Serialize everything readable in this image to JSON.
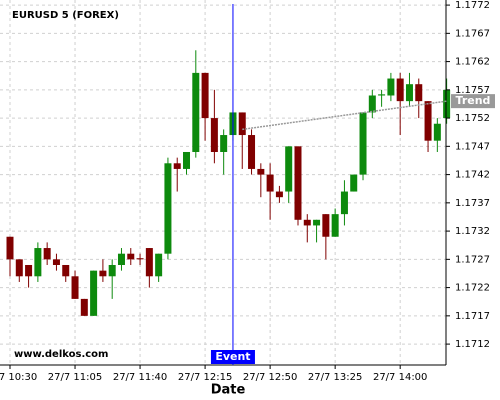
{
  "chart_data": {
    "type": "candlestick",
    "title": "EURUSD 5 (FOREX)",
    "watermark": "www.delkos.com",
    "xlabel": "Date",
    "categories": [
      "27/7 10:30",
      null,
      null,
      null,
      null,
      null,
      null,
      "27/7 11:05",
      null,
      null,
      null,
      null,
      null,
      null,
      "27/7 11:40",
      null,
      null,
      null,
      null,
      null,
      null,
      "27/7 12:15",
      null,
      null,
      null,
      null,
      null,
      null,
      "27/7 12:50",
      null,
      null,
      null,
      null,
      null,
      null,
      "27/7 13:25",
      null,
      null,
      null,
      null,
      null,
      null,
      "27/7 14:00",
      null,
      null,
      null,
      null,
      null
    ],
    "open": [
      1.1731,
      1.1727,
      1.1726,
      1.1724,
      1.1729,
      1.1727,
      1.1726,
      1.1724,
      1.172,
      1.1717,
      1.1725,
      1.1724,
      1.1726,
      1.1728,
      1.17272,
      1.1729,
      1.1724,
      1.1728,
      1.1744,
      1.1743,
      1.1746,
      1.176,
      1.1752,
      1.1746,
      1.1749,
      1.1753,
      1.1749,
      1.1743,
      1.1742,
      1.1739,
      1.1739,
      1.1747,
      1.1734,
      1.1733,
      1.1735,
      1.1731,
      1.1735,
      1.1739,
      1.1742,
      1.1753,
      1.1756,
      1.1756,
      1.1759,
      1.1755,
      1.1758,
      1.1755,
      1.1748,
      1.1752
    ],
    "high": [
      1.1731,
      1.1727,
      1.1726,
      1.173,
      1.173,
      1.1728,
      1.1726,
      1.1725,
      1.172,
      1.1725,
      1.1727,
      1.1727,
      1.1729,
      1.1729,
      1.1728,
      1.1729,
      1.1728,
      1.1745,
      1.1745,
      1.1746,
      1.1764,
      1.176,
      1.1757,
      1.175,
      1.1753,
      1.1753,
      1.175,
      1.1744,
      1.1744,
      1.174,
      1.1747,
      1.1747,
      1.1735,
      1.1734,
      1.1735,
      1.1736,
      1.1741,
      1.1742,
      1.1753,
      1.1757,
      1.1757,
      1.176,
      1.176,
      1.176,
      1.1759,
      1.1755,
      1.1752,
      1.1759
    ],
    "low": [
      1.1724,
      1.1723,
      1.1722,
      1.1723,
      1.1726,
      1.1725,
      1.1723,
      1.172,
      1.1717,
      1.1717,
      1.1723,
      1.172,
      1.1725,
      1.1726,
      1.1726,
      1.1722,
      1.1723,
      1.1727,
      1.1739,
      1.1742,
      1.1745,
      1.1748,
      1.1744,
      1.1742,
      1.1748,
      1.1743,
      1.1742,
      1.1738,
      1.1734,
      1.1737,
      1.1737,
      1.1733,
      1.173,
      1.173,
      1.1727,
      1.1731,
      1.1733,
      1.1739,
      1.1741,
      1.1752,
      1.1754,
      1.1755,
      1.1749,
      1.1754,
      1.1752,
      1.1746,
      1.1746,
      1.1751
    ],
    "close": [
      1.1727,
      1.1724,
      1.1724,
      1.1729,
      1.1727,
      1.1726,
      1.1724,
      1.172,
      1.1717,
      1.1725,
      1.1724,
      1.1726,
      1.1728,
      1.1727,
      1.1727,
      1.1724,
      1.1728,
      1.1744,
      1.1743,
      1.1746,
      1.176,
      1.1752,
      1.1746,
      1.1749,
      1.1753,
      1.1749,
      1.1743,
      1.1742,
      1.1739,
      1.1738,
      1.1747,
      1.1734,
      1.1733,
      1.1734,
      1.1731,
      1.1735,
      1.1739,
      1.1742,
      1.1753,
      1.1756,
      1.17562,
      1.1759,
      1.1755,
      1.1758,
      1.1755,
      1.1748,
      1.1751,
      1.1757
    ],
    "up_color": "#0d8a0d",
    "down_color": "#800000",
    "event": {
      "label": "Event",
      "index": 24,
      "color": "#0000ff"
    },
    "trend": {
      "label": "Trend",
      "from": {
        "index": 25,
        "value": 1.175
      },
      "to": {
        "index": 47,
        "value": 1.1755
      },
      "color": "#999999"
    },
    "ylim": [
      1.17083,
      1.17729
    ],
    "yticks": [
      1.1712,
      1.1717,
      1.1722,
      1.1727,
      1.1732,
      1.1737,
      1.1742,
      1.1747,
      1.1752,
      1.1757,
      1.1762,
      1.1767,
      1.1772
    ],
    "grid": true
  }
}
